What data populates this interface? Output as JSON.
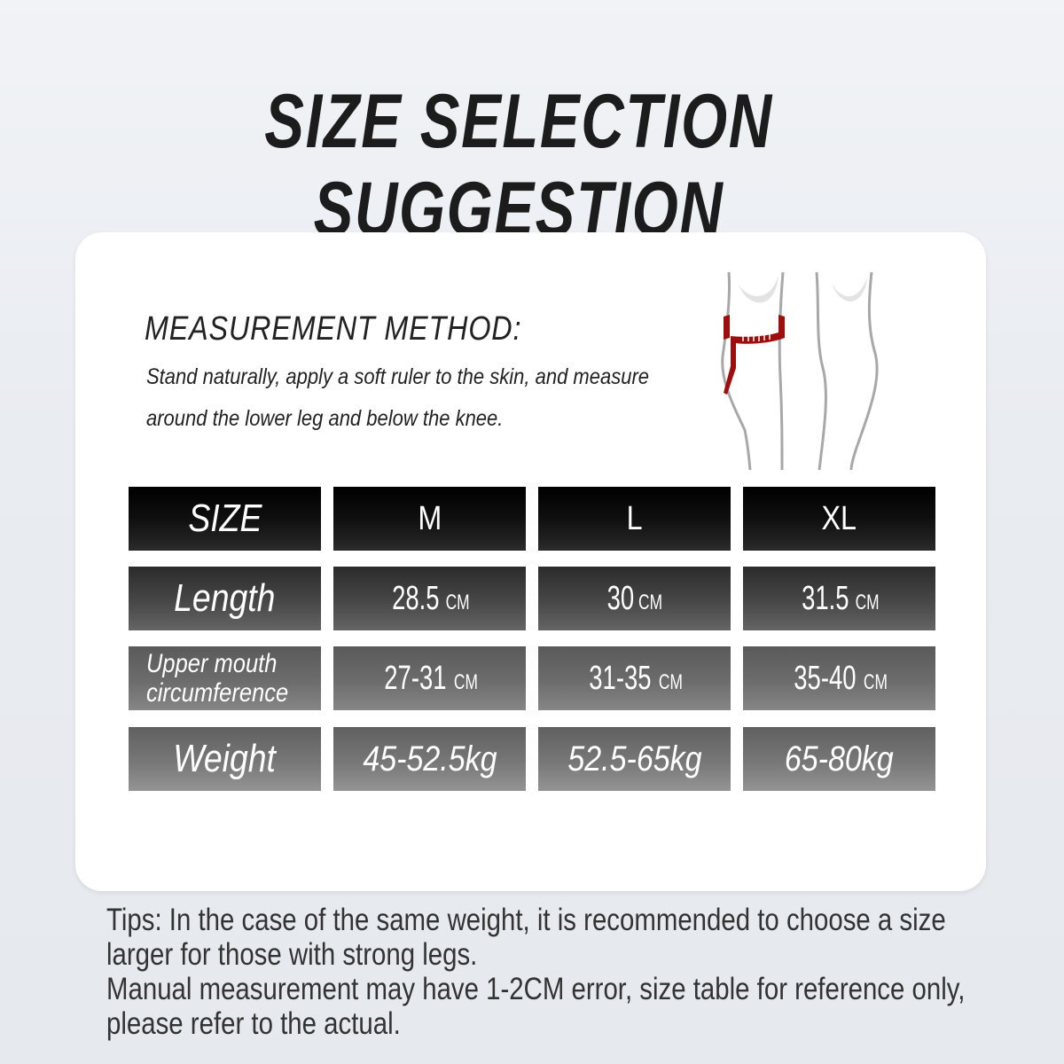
{
  "title": "SIZE SELECTION SUGGESTION",
  "measurement": {
    "title": "MEASUREMENT METHOD:",
    "text": "Stand naturally, apply a soft ruler to the skin, and measure around the lower leg and below the knee.",
    "illustration": "legs-with-measuring-tape-icon",
    "tape_color": "#a00d0d"
  },
  "table": {
    "header": {
      "label": "SIZE",
      "sizes": [
        "M",
        "L",
        "XL"
      ]
    },
    "rows": [
      {
        "label": "Length",
        "values": [
          {
            "num": "28.5",
            "unit": "CM"
          },
          {
            "num": "30",
            "unit": "CM"
          },
          {
            "num": "31.5",
            "unit": "CM"
          }
        ]
      },
      {
        "label": "Upper mouth circumference",
        "values": [
          {
            "num": "27-31",
            "unit": "CM"
          },
          {
            "num": "31-35",
            "unit": "CM"
          },
          {
            "num": "35-40",
            "unit": "CM"
          }
        ]
      },
      {
        "label": "Weight",
        "values": [
          {
            "num": "45-52.5kg",
            "unit": ""
          },
          {
            "num": "52.5-65kg",
            "unit": ""
          },
          {
            "num": "65-80kg",
            "unit": ""
          }
        ]
      }
    ]
  },
  "tips": [
    "Tips: In the case of the same weight, it is recommended to choose a size larger for those with strong legs.",
    "Manual measurement may have 1-2CM error, size table for reference only, please refer to the actual."
  ]
}
